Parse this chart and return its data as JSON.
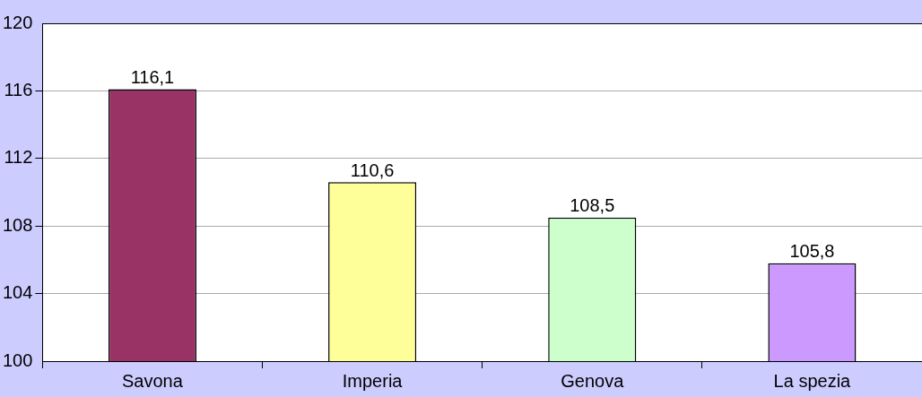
{
  "chart_data": {
    "type": "bar",
    "categories": [
      "Savona",
      "Imperia",
      "Genova",
      "La spezia"
    ],
    "values": [
      116.1,
      110.6,
      108.5,
      105.8
    ],
    "colors": [
      "#993366",
      "#ffff99",
      "#ccffcc",
      "#cc99ff"
    ],
    "value_labels": [
      "116,1",
      "110,6",
      "108,5",
      "105,8"
    ],
    "ylim": [
      100,
      120
    ],
    "yticks": [
      100,
      104,
      108,
      112,
      116,
      120
    ],
    "grid": "y",
    "legend": false
  }
}
